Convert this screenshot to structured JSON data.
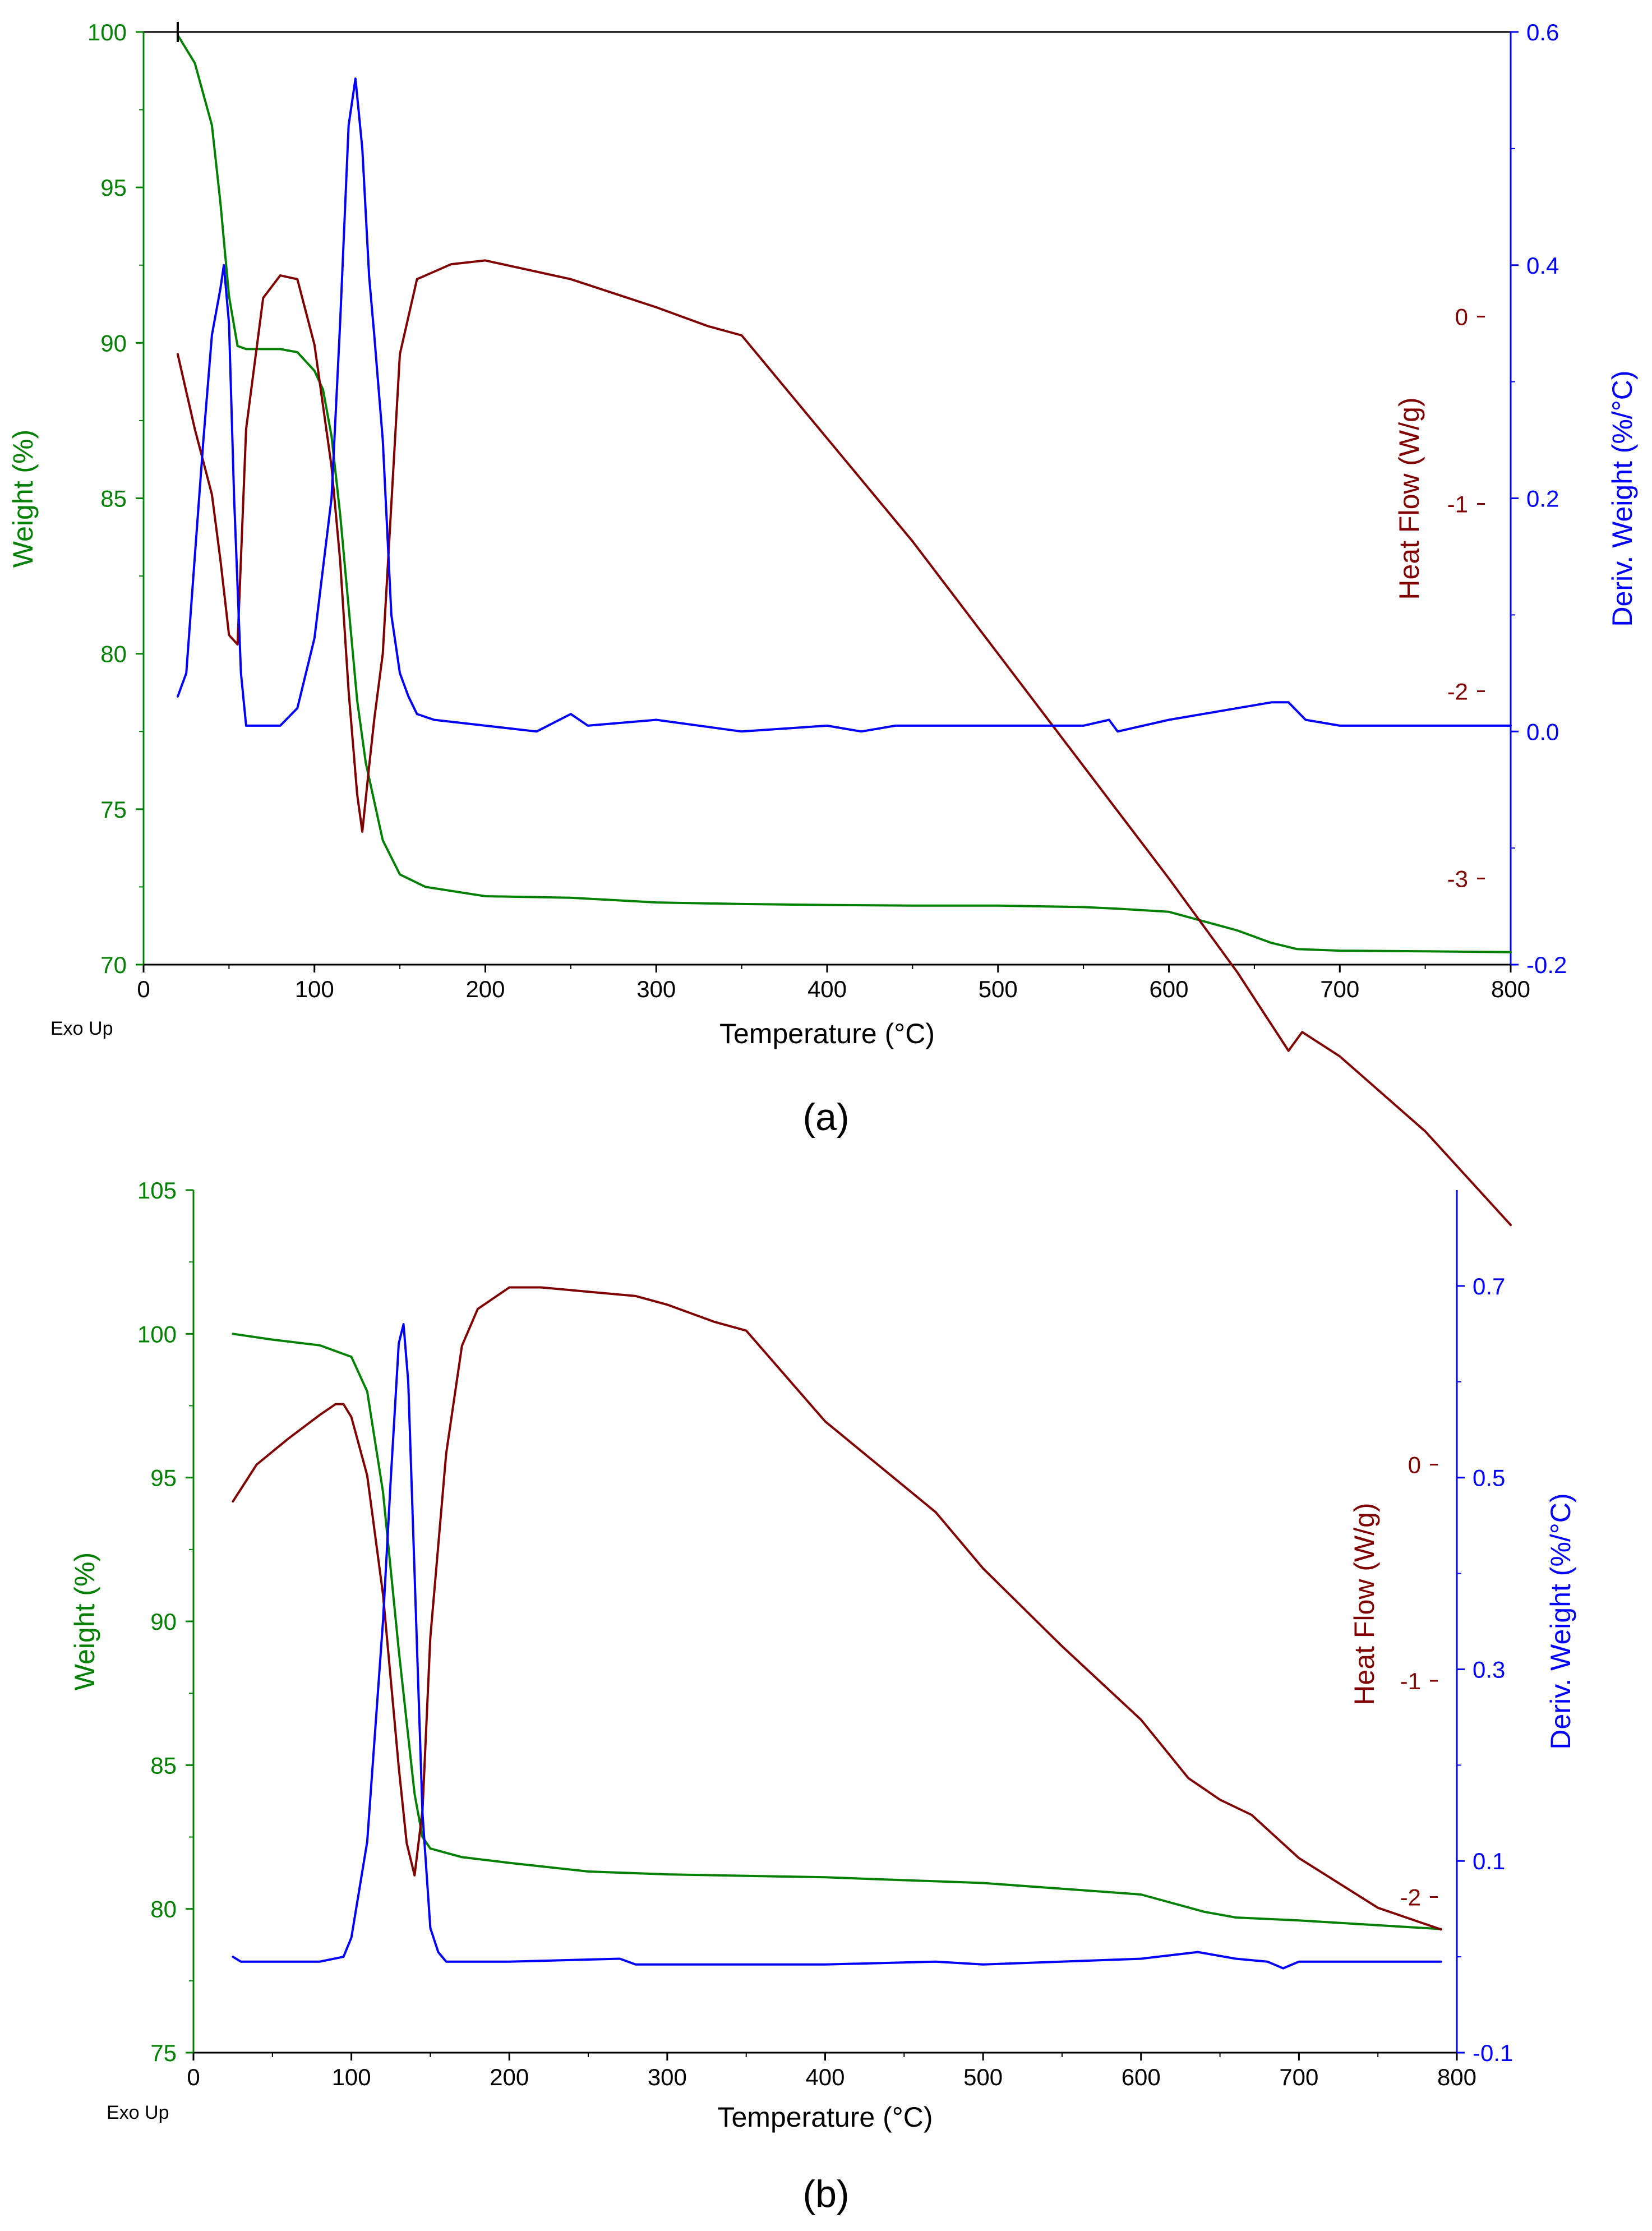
{
  "colors": {
    "weight": "#008000",
    "heat_flow": "#800000",
    "deriv": "#0000ff",
    "axis": "#000000"
  },
  "chart_data": [
    {
      "type": "line",
      "panel_label": "(a)",
      "xlabel": "Temperature (°C)",
      "xlim": [
        0,
        800
      ],
      "xticks": [
        0,
        100,
        200,
        300,
        400,
        500,
        600,
        700,
        800
      ],
      "corner_label": "Exo Up",
      "left_axis": {
        "label": "Weight (%)",
        "lim": [
          70,
          100
        ],
        "ticks": [
          70,
          75,
          80,
          85,
          90,
          95,
          100
        ]
      },
      "mid_axis": {
        "label": "Heat Flow (W/g)",
        "lim": [
          -3.46,
          1.52
        ],
        "ticks": [
          0,
          -1,
          -2,
          -3
        ]
      },
      "right_axis": {
        "label": "Deriv. Weight (%/°C)",
        "lim": [
          -0.2,
          0.6
        ],
        "ticks": [
          0.6,
          0.4,
          0.2,
          0.0,
          -0.2
        ]
      },
      "series": [
        {
          "name": "Weight (%)",
          "axis": "left",
          "x": [
            20,
            30,
            40,
            45,
            50,
            55,
            60,
            70,
            80,
            90,
            100,
            105,
            110,
            115,
            120,
            125,
            130,
            140,
            150,
            165,
            200,
            250,
            300,
            350,
            400,
            450,
            500,
            550,
            570,
            600,
            620,
            640,
            660,
            675,
            700,
            750,
            800
          ],
          "y": [
            99.9,
            99.0,
            97.0,
            94.5,
            91.5,
            89.9,
            89.8,
            89.8,
            89.8,
            89.7,
            89.1,
            88.5,
            87.0,
            84.5,
            81.5,
            78.5,
            76.5,
            74.0,
            72.9,
            72.5,
            72.2,
            72.15,
            72.0,
            71.95,
            71.92,
            71.9,
            71.9,
            71.85,
            71.8,
            71.7,
            71.4,
            71.1,
            70.7,
            70.5,
            70.45,
            70.43,
            70.4
          ]
        },
        {
          "name": "Heat Flow (W/g)",
          "axis": "mid",
          "x": [
            20,
            30,
            40,
            45,
            50,
            55,
            60,
            70,
            80,
            90,
            100,
            110,
            115,
            120,
            125,
            128,
            132,
            135,
            140,
            145,
            150,
            160,
            180,
            200,
            250,
            300,
            330,
            350,
            400,
            450,
            500,
            550,
            600,
            640,
            660,
            670,
            678,
            700,
            750,
            800
          ],
          "y": [
            -0.2,
            -0.6,
            -0.95,
            -1.3,
            -1.7,
            -1.75,
            -0.6,
            0.1,
            0.22,
            0.2,
            -0.15,
            -0.8,
            -1.3,
            -2.0,
            -2.55,
            -2.75,
            -2.4,
            -2.15,
            -1.8,
            -1.0,
            -0.2,
            0.2,
            0.28,
            0.3,
            0.2,
            0.05,
            -0.05,
            -0.1,
            -0.65,
            -1.2,
            -1.8,
            -2.4,
            -3.0,
            -3.5,
            -3.78,
            -3.92,
            -3.82,
            -3.95,
            -4.35,
            -4.85
          ]
        },
        {
          "name": "Deriv. Weight (%/°C)",
          "axis": "right",
          "x": [
            20,
            25,
            30,
            35,
            40,
            45,
            47,
            50,
            53,
            57,
            60,
            70,
            80,
            90,
            100,
            110,
            115,
            120,
            124,
            128,
            132,
            135,
            140,
            145,
            150,
            155,
            160,
            170,
            200,
            230,
            250,
            260,
            300,
            350,
            400,
            420,
            440,
            500,
            550,
            565,
            570,
            600,
            640,
            660,
            670,
            680,
            700,
            750,
            800
          ],
          "y": [
            0.03,
            0.05,
            0.15,
            0.25,
            0.34,
            0.38,
            0.4,
            0.35,
            0.2,
            0.05,
            0.005,
            0.005,
            0.005,
            0.02,
            0.08,
            0.2,
            0.35,
            0.52,
            0.56,
            0.5,
            0.39,
            0.34,
            0.25,
            0.1,
            0.05,
            0.03,
            0.015,
            0.01,
            0.005,
            0.0,
            0.015,
            0.005,
            0.01,
            0.0,
            0.005,
            0.0,
            0.005,
            0.005,
            0.005,
            0.01,
            0.0,
            0.01,
            0.02,
            0.025,
            0.025,
            0.01,
            0.005,
            0.005,
            0.005
          ]
        }
      ]
    },
    {
      "type": "line",
      "panel_label": "(b)",
      "xlabel": "Temperature (°C)",
      "xlim": [
        0,
        800
      ],
      "xticks": [
        0,
        100,
        200,
        300,
        400,
        500,
        600,
        700,
        800
      ],
      "corner_label": "Exo Up",
      "left_axis": {
        "label": "Weight (%)",
        "lim": [
          75,
          105
        ],
        "ticks": [
          75,
          80,
          85,
          90,
          95,
          100,
          105
        ]
      },
      "mid_axis": {
        "label": "Heat Flow (W/g)",
        "lim": [
          -2.72,
          1.27
        ],
        "ticks": [
          0,
          -1,
          -2
        ]
      },
      "right_axis": {
        "label": "Deriv. Weight (%/°C)",
        "lim": [
          -0.1,
          0.8
        ],
        "ticks": [
          0.7,
          0.5,
          0.3,
          0.1,
          -0.1
        ]
      },
      "series": [
        {
          "name": "Weight (%)",
          "axis": "left",
          "x": [
            25,
            50,
            80,
            100,
            110,
            120,
            130,
            140,
            145,
            150,
            170,
            200,
            250,
            300,
            400,
            500,
            600,
            640,
            660,
            700,
            790
          ],
          "y": [
            100.0,
            99.8,
            99.6,
            99.2,
            98.0,
            94.5,
            89.0,
            84.0,
            82.5,
            82.1,
            81.8,
            81.6,
            81.3,
            81.2,
            81.1,
            80.9,
            80.5,
            79.9,
            79.7,
            79.6,
            79.3
          ]
        },
        {
          "name": "Heat Flow (W/g)",
          "axis": "mid",
          "x": [
            25,
            40,
            60,
            80,
            90,
            95,
            100,
            110,
            120,
            130,
            135,
            140,
            145,
            150,
            160,
            170,
            180,
            200,
            220,
            250,
            280,
            300,
            330,
            350,
            400,
            450,
            470,
            500,
            550,
            600,
            630,
            650,
            670,
            700,
            750,
            790
          ],
          "y": [
            -0.17,
            0.0,
            0.12,
            0.23,
            0.28,
            0.28,
            0.22,
            -0.05,
            -0.6,
            -1.4,
            -1.75,
            -1.9,
            -1.6,
            -0.8,
            0.05,
            0.55,
            0.72,
            0.82,
            0.82,
            0.8,
            0.78,
            0.74,
            0.66,
            0.62,
            0.2,
            -0.1,
            -0.22,
            -0.48,
            -0.84,
            -1.18,
            -1.45,
            -1.55,
            -1.62,
            -1.82,
            -2.05,
            -2.15
          ]
        },
        {
          "name": "Deriv. Weight (%/°C)",
          "axis": "right",
          "x": [
            25,
            30,
            40,
            60,
            80,
            95,
            100,
            110,
            120,
            125,
            130,
            133,
            136,
            140,
            145,
            150,
            155,
            160,
            170,
            200,
            270,
            280,
            300,
            400,
            470,
            500,
            600,
            636,
            660,
            680,
            690,
            700,
            750,
            790
          ],
          "y": [
            0.0,
            -0.005,
            -0.005,
            -0.005,
            -0.005,
            0.0,
            0.02,
            0.12,
            0.35,
            0.5,
            0.64,
            0.66,
            0.6,
            0.4,
            0.15,
            0.03,
            0.005,
            -0.005,
            -0.005,
            -0.005,
            -0.002,
            -0.008,
            -0.008,
            -0.008,
            -0.005,
            -0.008,
            -0.002,
            0.005,
            -0.002,
            -0.005,
            -0.012,
            -0.005,
            -0.005,
            -0.005
          ]
        }
      ]
    }
  ]
}
